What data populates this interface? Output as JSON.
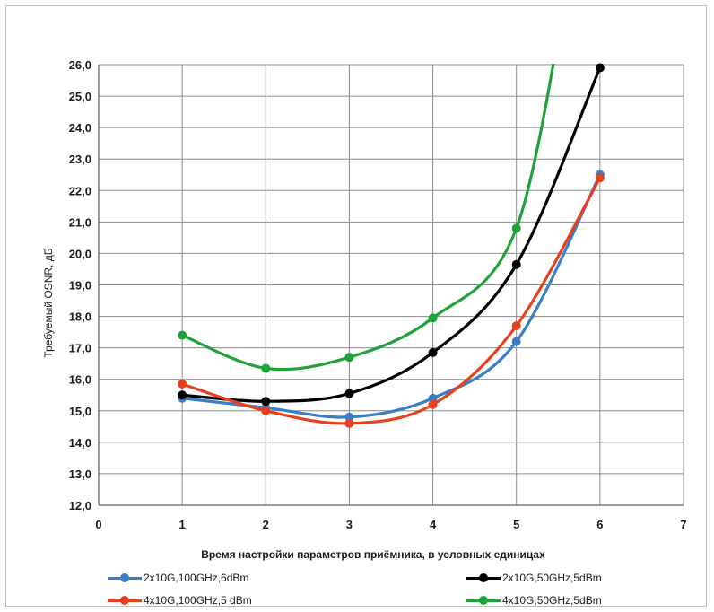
{
  "chart_data": {
    "type": "line",
    "title": "",
    "xlabel": "Время настройки параметров приёмника, в условных единицах",
    "ylabel": "Требуемый OSNR, дБ",
    "xlim": [
      0,
      7
    ],
    "ylim": [
      12,
      26
    ],
    "x_ticks": [
      "0",
      "1",
      "2",
      "3",
      "4",
      "5",
      "6",
      "7"
    ],
    "y_ticks": [
      "12,0",
      "13,0",
      "14,0",
      "15,0",
      "16,0",
      "17,0",
      "18,0",
      "19,0",
      "20,0",
      "21,0",
      "22,0",
      "23,0",
      "24,0",
      "25,0",
      "26,0"
    ],
    "grid": true,
    "legend_position": "bottom",
    "series": [
      {
        "name": "2x10G,100GHz,6dBm",
        "color": "#3a7ec8",
        "x": [
          1,
          2,
          3,
          4,
          5,
          6
        ],
        "y": [
          15.4,
          15.1,
          14.8,
          15.4,
          17.2,
          22.5
        ]
      },
      {
        "name": "2x10G,50GHz,5dBm",
        "color": "#000000",
        "x": [
          1,
          2,
          3,
          4,
          5,
          6,
          6.6
        ],
        "y": [
          15.5,
          15.3,
          15.55,
          16.85,
          19.65,
          25.9,
          30.0
        ]
      },
      {
        "name": "4x10G,100GHz,5 dBm",
        "color": "#e8401c",
        "x": [
          1,
          2,
          3,
          4,
          5,
          6
        ],
        "y": [
          15.85,
          15.0,
          14.6,
          15.2,
          17.7,
          22.4
        ]
      },
      {
        "name": "4x10G,50GHz,5dBm",
        "color": "#1fa339",
        "x": [
          1,
          2,
          3,
          4,
          5,
          5.7
        ],
        "y": [
          17.4,
          16.35,
          16.7,
          17.95,
          20.8,
          30.0
        ]
      }
    ]
  }
}
